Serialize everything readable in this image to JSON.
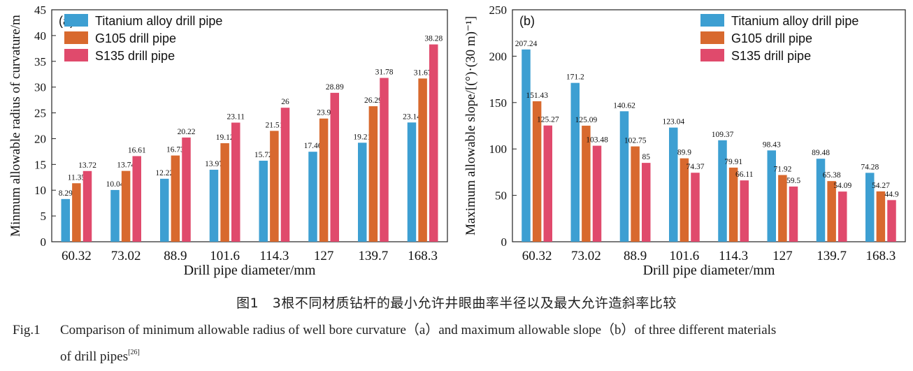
{
  "categories": [
    "60.32",
    "73.02",
    "88.9",
    "101.6",
    "114.3",
    "127",
    "139.7",
    "168.3"
  ],
  "series_colors": [
    "#3d9fd2",
    "#d8692e",
    "#e04a6c"
  ],
  "chart_data": [
    {
      "type": "bar",
      "panel_label": "(a)",
      "title": "",
      "xlabel": "Drill pipe diameter/mm",
      "ylabel": "Minmum allowable radius of curvature/m",
      "ylim": [
        0,
        45
      ],
      "yticks": [
        0,
        5,
        10,
        15,
        20,
        25,
        30,
        35,
        40,
        45
      ],
      "categories": [
        "60.32",
        "73.02",
        "88.9",
        "101.6",
        "114.3",
        "127",
        "139.7",
        "168.3"
      ],
      "legend_position": "top-left",
      "series": [
        {
          "name": "Titanium alloy drill pipe",
          "values": [
            8.29,
            10.04,
            12.22,
            13.97,
            15.72,
            17.46,
            19.21,
            23.14
          ]
        },
        {
          "name": "G105 drill pipe",
          "values": [
            11.35,
            13.74,
            16.73,
            19.12,
            21.51,
            23.9,
            26.29,
            31.67
          ]
        },
        {
          "name": "S135 drill pipe",
          "values": [
            13.72,
            16.61,
            20.22,
            23.11,
            26,
            28.89,
            31.78,
            38.28
          ]
        }
      ]
    },
    {
      "type": "bar",
      "panel_label": "(b)",
      "title": "",
      "xlabel": "Drill pipe diameter/mm",
      "ylabel": "Maximum allowable slope/[(°)·(30 m)⁻¹]",
      "ylim": [
        0,
        250
      ],
      "yticks": [
        0,
        50,
        100,
        150,
        200,
        250
      ],
      "categories": [
        "60.32",
        "73.02",
        "88.9",
        "101.6",
        "114.3",
        "127",
        "139.7",
        "168.3"
      ],
      "legend_position": "top-right",
      "series": [
        {
          "name": "Titanium alloy drill pipe",
          "values": [
            207.24,
            171.2,
            140.62,
            123.04,
            109.37,
            98.43,
            89.48,
            74.28
          ]
        },
        {
          "name": "G105 drill pipe",
          "values": [
            151.43,
            125.09,
            102.75,
            89.9,
            79.91,
            71.92,
            65.38,
            54.27
          ]
        },
        {
          "name": "S135 drill pipe",
          "values": [
            125.27,
            103.48,
            85,
            74.37,
            66.11,
            59.5,
            54.09,
            44.9
          ]
        }
      ]
    }
  ],
  "caption": {
    "cn": "图1　3根不同材质钻杆的最小允许井眼曲率半径以及最大允许造斜率比较",
    "fig_number": "Fig.1",
    "en_line1": "Comparison of minimum allowable radius of well bore curvature（a）and maximum allowable slope（b）of three different materials",
    "en_line2": "of drill pipes",
    "ref": "[26]"
  }
}
